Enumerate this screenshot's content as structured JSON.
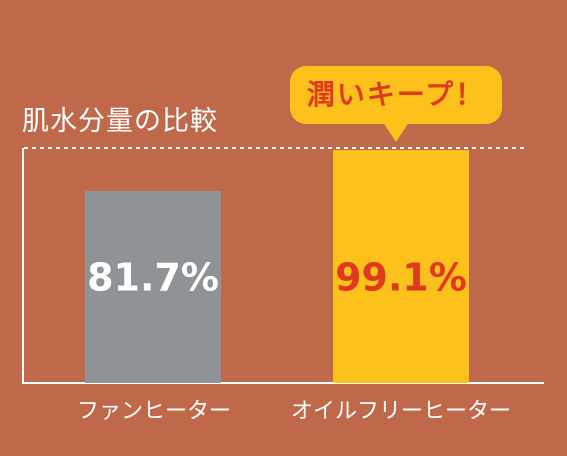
{
  "chart_data": {
    "type": "bar",
    "title": "肌水分量の比較",
    "categories": [
      "ファンヒーター",
      "オイルフリーヒーター"
    ],
    "values": [
      81.7,
      99.1
    ],
    "value_labels": [
      "81.7%",
      "99.1%"
    ],
    "ylim": [
      0,
      100
    ],
    "reference_line": 100,
    "bar_colors": [
      "#8f9396",
      "#fcc21b"
    ],
    "value_label_colors": [
      "#ffffff",
      "#e03a1e"
    ],
    "annotation": "潤いキープ！",
    "grid": false
  },
  "colors": {
    "background": "#c0694a",
    "callout": "#fcc21b",
    "accent_text": "#e03a1e"
  }
}
